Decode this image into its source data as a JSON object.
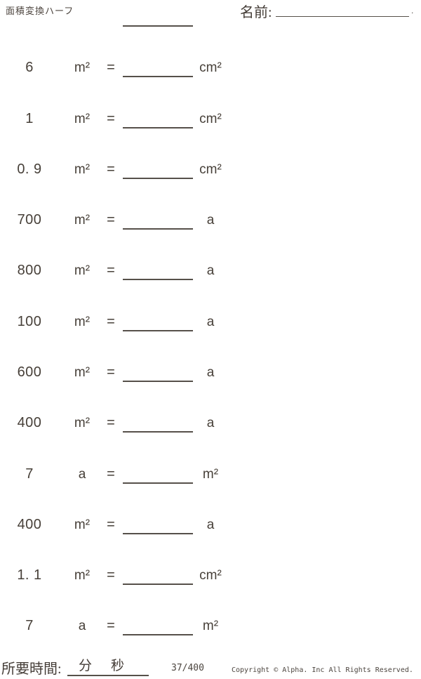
{
  "page": {
    "title": "面積変換ハーフ",
    "name_label": "名前:",
    "name_end_mark": "."
  },
  "problems": [
    {
      "value": "6",
      "from_unit": "m²",
      "equals_sign": "=",
      "to_unit": "cm²"
    },
    {
      "value": "1",
      "from_unit": "m²",
      "equals_sign": "=",
      "to_unit": "cm²"
    },
    {
      "value": "0. 9",
      "from_unit": "m²",
      "equals_sign": "=",
      "to_unit": "cm²"
    },
    {
      "value": "700",
      "from_unit": "m²",
      "equals_sign": "=",
      "to_unit": "a"
    },
    {
      "value": "800",
      "from_unit": "m²",
      "equals_sign": "=",
      "to_unit": "a"
    },
    {
      "value": "100",
      "from_unit": "m²",
      "equals_sign": "=",
      "to_unit": "a"
    },
    {
      "value": "600",
      "from_unit": "m²",
      "equals_sign": "=",
      "to_unit": "a"
    },
    {
      "value": "400",
      "from_unit": "m²",
      "equals_sign": "=",
      "to_unit": "a"
    },
    {
      "value": "7",
      "from_unit": "a",
      "equals_sign": "=",
      "to_unit": "m²"
    },
    {
      "value": "400",
      "from_unit": "m²",
      "equals_sign": "=",
      "to_unit": "a"
    },
    {
      "value": "1. 1",
      "from_unit": "m²",
      "equals_sign": "=",
      "to_unit": "cm²"
    },
    {
      "value": "7",
      "from_unit": "a",
      "equals_sign": "=",
      "to_unit": "m²"
    }
  ],
  "footer": {
    "time_label": "所要時間:",
    "minutes_label": "分",
    "seconds_label": "秒",
    "progress": "37/400",
    "copyright": "Copyright © Alpha. Inc All Rights Reserved."
  },
  "colors": {
    "text": "#474039",
    "line": "#56504a",
    "background": "#ffffff"
  }
}
